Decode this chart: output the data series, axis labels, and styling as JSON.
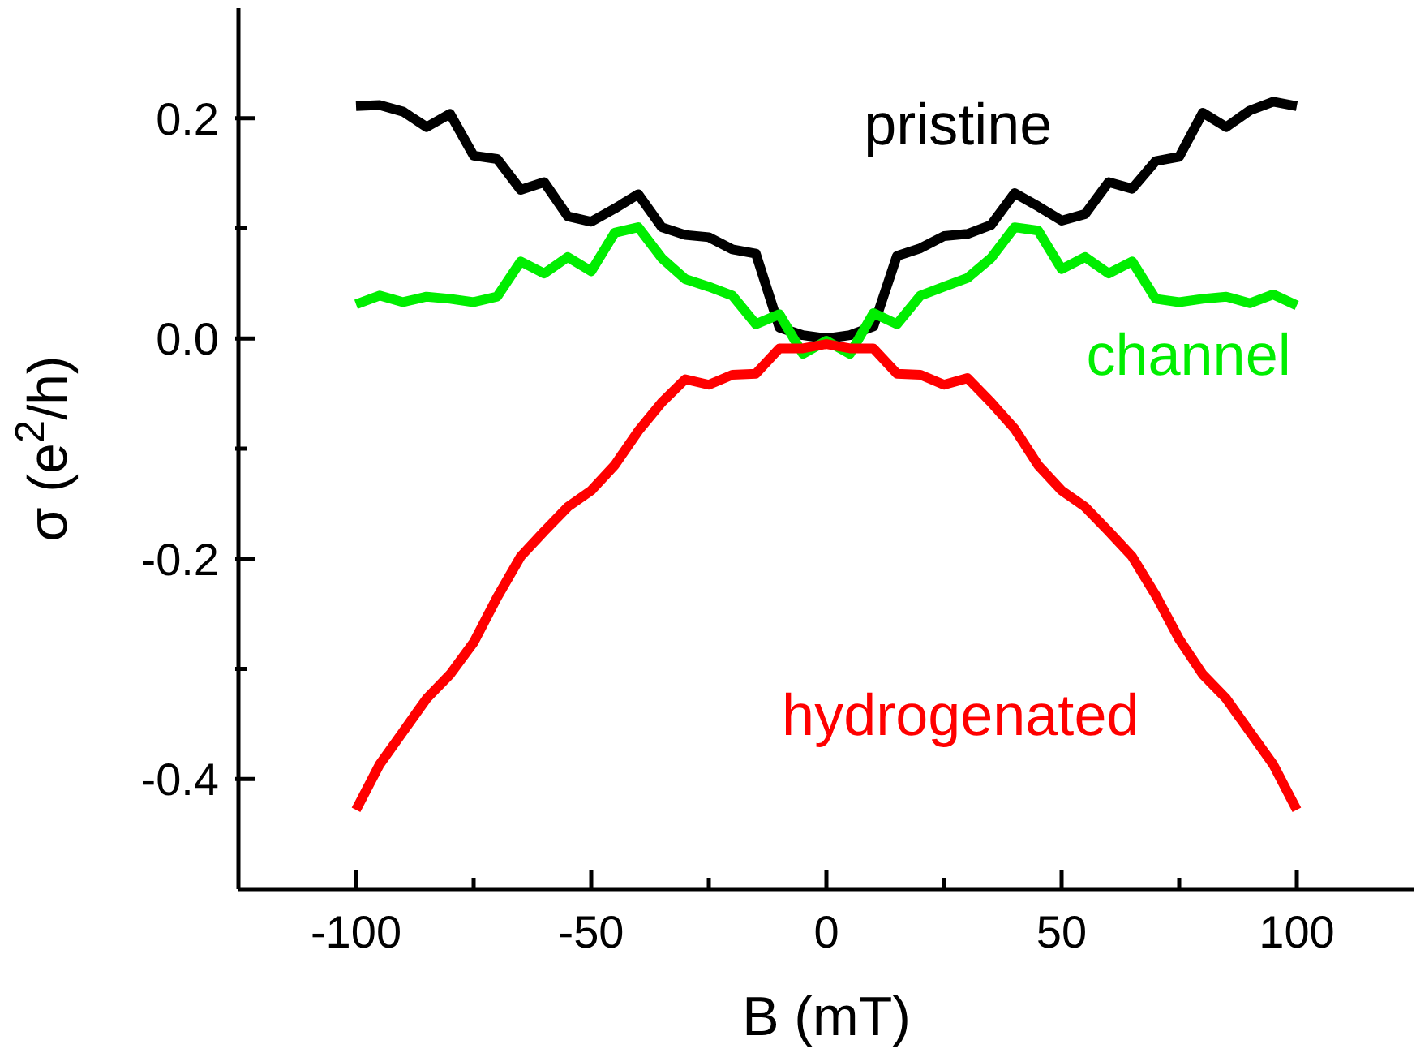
{
  "chart_data": {
    "type": "line",
    "xlabel": "B (mT)",
    "ylabel": "σ (e$^{2}$/h)",
    "x": [
      -100,
      -95,
      -90,
      -85,
      -80,
      -75,
      -70,
      -65,
      -60,
      -55,
      -50,
      -45,
      -40,
      -35,
      -30,
      -25,
      -20,
      -15,
      -10,
      -5,
      0,
      5,
      10,
      15,
      20,
      25,
      30,
      35,
      40,
      45,
      50,
      55,
      60,
      65,
      70,
      75,
      80,
      85,
      90,
      95,
      100
    ],
    "series": [
      {
        "name": "pristine",
        "color": "#000000",
        "values": [
          0.211,
          0.212,
          0.206,
          0.192,
          0.204,
          0.166,
          0.163,
          0.135,
          0.142,
          0.111,
          0.106,
          0.118,
          0.131,
          0.101,
          0.094,
          0.092,
          0.081,
          0.077,
          0.01,
          0.003,
          0.0,
          0.003,
          0.011,
          0.075,
          0.082,
          0.093,
          0.095,
          0.103,
          0.132,
          0.12,
          0.107,
          0.113,
          0.142,
          0.136,
          0.161,
          0.165,
          0.205,
          0.192,
          0.207,
          0.215,
          0.211
        ]
      },
      {
        "name": "channel",
        "color": "#00ee00",
        "values": [
          0.031,
          0.039,
          0.033,
          0.038,
          0.036,
          0.033,
          0.038,
          0.07,
          0.059,
          0.074,
          0.061,
          0.096,
          0.101,
          0.073,
          0.054,
          0.047,
          0.039,
          0.013,
          0.022,
          -0.014,
          -0.002,
          -0.014,
          0.023,
          0.013,
          0.039,
          0.047,
          0.055,
          0.073,
          0.101,
          0.098,
          0.063,
          0.074,
          0.059,
          0.07,
          0.036,
          0.033,
          0.036,
          0.038,
          0.032,
          0.04,
          0.03
        ]
      },
      {
        "name": "hydrogenated",
        "color": "#ff0000",
        "values": [
          -0.428,
          -0.387,
          -0.357,
          -0.327,
          -0.305,
          -0.276,
          -0.235,
          -0.198,
          -0.175,
          -0.153,
          -0.138,
          -0.115,
          -0.084,
          -0.058,
          -0.037,
          -0.042,
          -0.033,
          -0.032,
          -0.009,
          -0.009,
          -0.005,
          -0.009,
          -0.009,
          -0.032,
          -0.033,
          -0.042,
          -0.036,
          -0.058,
          -0.082,
          -0.115,
          -0.138,
          -0.153,
          -0.175,
          -0.198,
          -0.233,
          -0.273,
          -0.305,
          -0.327,
          -0.357,
          -0.387,
          -0.428
        ]
      }
    ],
    "xlim": [
      -125,
      125
    ],
    "xticks": [
      -100,
      {
        "value": -75,
        "label": null
      },
      -50,
      {
        "value": -25,
        "label": null
      },
      0,
      {
        "value": 25,
        "label": null
      },
      50,
      {
        "value": 75,
        "label": null
      },
      100
    ],
    "ylim": [
      -0.5,
      0.3
    ],
    "yticks": [
      -0.4,
      {
        "value": -0.3,
        "label": null
      },
      -0.2,
      {
        "value": -0.1,
        "label": null
      },
      {
        "value": 0,
        "label": "0.0"
      },
      {
        "value": 0.1,
        "label": null
      },
      0.2
    ],
    "grid": false,
    "legend": false,
    "marker": "none",
    "line_style": "solid"
  }
}
